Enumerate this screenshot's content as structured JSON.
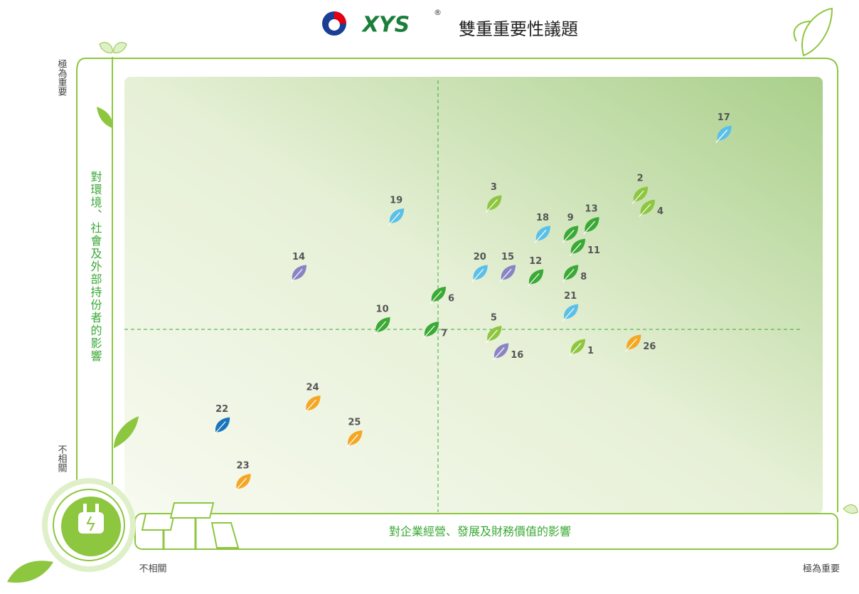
{
  "chart_data": {
    "type": "scatter",
    "logo": "XYS",
    "logo_mark": "®",
    "title": "雙重重要性議題",
    "x_label": "對企業經營、發展及財務價值的影響",
    "y_label": "對環境、社會及外部持份者的影響",
    "xlim": [
      0,
      10
    ],
    "ylim": [
      0,
      10
    ],
    "xticks": [
      {
        "value": 0,
        "label": "不相關"
      },
      {
        "value": 10,
        "label": "極為重要"
      }
    ],
    "yticks": [
      {
        "value": 0,
        "label": "不相關"
      },
      {
        "value": 10,
        "label": "極為重要"
      }
    ],
    "xline": 4.5,
    "yline": 4.2,
    "points": [
      {
        "label": "1",
        "x": 6.5,
        "y": 3.8,
        "color": "#8dc63f"
      },
      {
        "label": "2",
        "x": 7.4,
        "y": 7.3,
        "color": "#8dc63f"
      },
      {
        "label": "3",
        "x": 5.3,
        "y": 7.1,
        "color": "#8dc63f"
      },
      {
        "label": "4",
        "x": 7.5,
        "y": 7.0,
        "color": "#8dc63f"
      },
      {
        "label": "5",
        "x": 5.3,
        "y": 4.1,
        "color": "#8dc63f"
      },
      {
        "label": "6",
        "x": 4.5,
        "y": 5.0,
        "color": "#3aa935"
      },
      {
        "label": "7",
        "x": 4.4,
        "y": 4.2,
        "color": "#3aa935"
      },
      {
        "label": "8",
        "x": 6.4,
        "y": 5.5,
        "color": "#3aa935"
      },
      {
        "label": "9",
        "x": 6.4,
        "y": 6.4,
        "color": "#3aa935"
      },
      {
        "label": "10",
        "x": 3.7,
        "y": 4.3,
        "color": "#3aa935"
      },
      {
        "label": "11",
        "x": 6.5,
        "y": 6.1,
        "color": "#3aa935"
      },
      {
        "label": "12",
        "x": 5.9,
        "y": 5.4,
        "color": "#3aa935"
      },
      {
        "label": "13",
        "x": 6.7,
        "y": 6.6,
        "color": "#3aa935"
      },
      {
        "label": "14",
        "x": 2.5,
        "y": 5.5,
        "color": "#8a84c4"
      },
      {
        "label": "15",
        "x": 5.5,
        "y": 5.5,
        "color": "#8a84c4"
      },
      {
        "label": "16",
        "x": 5.4,
        "y": 3.7,
        "color": "#8a84c4"
      },
      {
        "label": "17",
        "x": 8.6,
        "y": 8.7,
        "color": "#5bc0e8"
      },
      {
        "label": "18",
        "x": 6.0,
        "y": 6.4,
        "color": "#5bc0e8"
      },
      {
        "label": "19",
        "x": 3.9,
        "y": 6.8,
        "color": "#5bc0e8"
      },
      {
        "label": "20",
        "x": 5.1,
        "y": 5.5,
        "color": "#5bc0e8"
      },
      {
        "label": "21",
        "x": 6.4,
        "y": 4.6,
        "color": "#5bc0e8"
      },
      {
        "label": "22",
        "x": 1.4,
        "y": 2.0,
        "color": "#1b75bc"
      },
      {
        "label": "23",
        "x": 1.7,
        "y": 0.7,
        "color": "#f5a623"
      },
      {
        "label": "24",
        "x": 2.7,
        "y": 2.5,
        "color": "#f5a623"
      },
      {
        "label": "25",
        "x": 3.3,
        "y": 1.7,
        "color": "#f5a623"
      },
      {
        "label": "26",
        "x": 7.3,
        "y": 3.9,
        "color": "#f5a623"
      }
    ]
  }
}
